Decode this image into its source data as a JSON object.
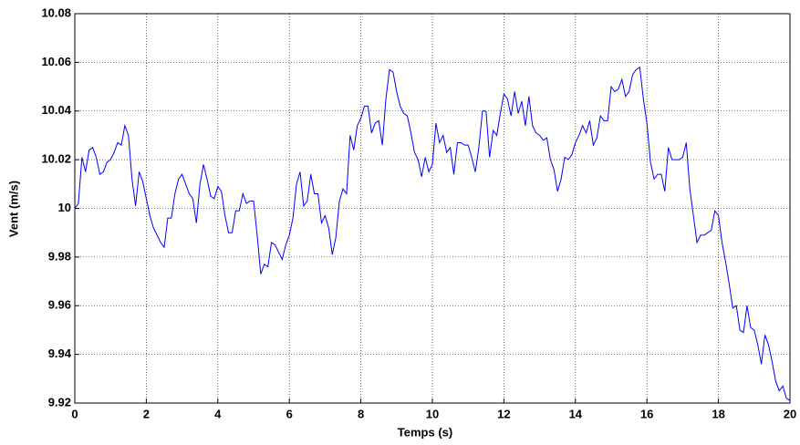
{
  "chart_data": {
    "type": "line",
    "x_label": "Temps (s)",
    "y_label": "Vent (m/s)",
    "color": "#0000ff",
    "grid": true,
    "xlim": [
      0,
      20
    ],
    "xticks": [
      0,
      2,
      4,
      6,
      8,
      10,
      12,
      14,
      16,
      18,
      20
    ],
    "ylim": [
      9.92,
      10.08
    ],
    "yticks": [
      9.92,
      9.94,
      9.96,
      9.98,
      10,
      10.02,
      10.04,
      10.06,
      10.08
    ],
    "x": [
      0,
      0.1,
      0.2,
      0.3,
      0.4,
      0.5,
      0.6,
      0.7,
      0.8,
      0.9,
      1,
      1.1,
      1.2,
      1.3,
      1.4,
      1.5,
      1.6,
      1.7,
      1.8,
      1.9,
      2,
      2.1,
      2.2,
      2.3,
      2.4,
      2.5,
      2.6,
      2.7,
      2.8,
      2.9,
      3,
      3.1,
      3.2,
      3.3,
      3.4,
      3.5,
      3.6,
      3.7,
      3.8,
      3.9,
      4,
      4.1,
      4.2,
      4.3,
      4.4,
      4.5,
      4.6,
      4.7,
      4.8,
      4.9,
      5,
      5.1,
      5.2,
      5.3,
      5.4,
      5.5,
      5.6,
      5.7,
      5.8,
      5.9,
      6,
      6.1,
      6.2,
      6.3,
      6.4,
      6.5,
      6.6,
      6.7,
      6.8,
      6.9,
      7,
      7.1,
      7.2,
      7.3,
      7.4,
      7.5,
      7.6,
      7.7,
      7.8,
      7.9,
      8,
      8.1,
      8.2,
      8.3,
      8.4,
      8.5,
      8.6,
      8.7,
      8.8,
      8.9,
      9,
      9.1,
      9.2,
      9.3,
      9.4,
      9.5,
      9.6,
      9.7,
      9.8,
      9.9,
      10,
      10.1,
      10.2,
      10.3,
      10.4,
      10.5,
      10.6,
      10.7,
      10.8,
      10.9,
      11,
      11.1,
      11.2,
      11.3,
      11.4,
      11.5,
      11.6,
      11.7,
      11.8,
      11.9,
      12,
      12.1,
      12.2,
      12.3,
      12.4,
      12.5,
      12.6,
      12.7,
      12.8,
      12.9,
      13,
      13.1,
      13.2,
      13.3,
      13.4,
      13.5,
      13.6,
      13.7,
      13.8,
      13.9,
      14,
      14.1,
      14.2,
      14.3,
      14.4,
      14.5,
      14.6,
      14.7,
      14.8,
      14.9,
      15,
      15.1,
      15.2,
      15.3,
      15.4,
      15.5,
      15.6,
      15.7,
      15.8,
      15.9,
      16,
      16.1,
      16.2,
      16.3,
      16.4,
      16.5,
      16.6,
      16.7,
      16.8,
      16.9,
      17,
      17.1,
      17.2,
      17.3,
      17.4,
      17.5,
      17.6,
      17.7,
      17.8,
      17.9,
      18,
      18.1,
      18.2,
      18.3,
      18.4,
      18.5,
      18.6,
      18.7,
      18.8,
      18.9,
      19,
      19.1,
      19.2,
      19.3,
      19.4,
      19.5,
      19.6,
      19.7,
      19.8,
      19.9,
      20
    ],
    "values": [
      10.0,
      10.002,
      10.021,
      10.015,
      10.024,
      10.025,
      10.021,
      10.014,
      10.015,
      10.019,
      10.02,
      10.023,
      10.027,
      10.026,
      10.034,
      10.03,
      10.012,
      10.001,
      10.015,
      10.011,
      10.004,
      9.997,
      9.992,
      9.989,
      9.986,
      9.984,
      9.996,
      9.996,
      10.006,
      10.012,
      10.014,
      10.01,
      10.006,
      10.004,
      9.994,
      10.01,
      10.018,
      10.012,
      10.005,
      10.004,
      10.009,
      10.007,
      9.997,
      9.99,
      9.99,
      9.999,
      9.999,
      10.006,
      10.002,
      10.003,
      10.003,
      9.989,
      9.973,
      9.977,
      9.976,
      9.986,
      9.985,
      9.982,
      9.979,
      9.985,
      9.989,
      9.996,
      10.01,
      10.015,
      10.001,
      10.003,
      10.014,
      10.006,
      10.006,
      9.994,
      9.997,
      9.992,
      9.981,
      9.988,
      10.003,
      10.008,
      10.006,
      10.03,
      10.024,
      10.034,
      10.037,
      10.042,
      10.042,
      10.031,
      10.035,
      10.036,
      10.026,
      10.045,
      10.057,
      10.056,
      10.048,
      10.042,
      10.039,
      10.038,
      10.031,
      10.023,
      10.02,
      10.013,
      10.021,
      10.015,
      10.018,
      10.035,
      10.027,
      10.03,
      10.023,
      10.025,
      10.014,
      10.027,
      10.027,
      10.026,
      10.026,
      10.021,
      10.015,
      10.025,
      10.04,
      10.04,
      10.021,
      10.032,
      10.03,
      10.039,
      10.047,
      10.045,
      10.038,
      10.048,
      10.039,
      10.044,
      10.034,
      10.046,
      10.034,
      10.031,
      10.03,
      10.028,
      10.029,
      10.02,
      10.016,
      10.007,
      10.012,
      10.021,
      10.02,
      10.022,
      10.027,
      10.03,
      10.034,
      10.031,
      10.036,
      10.026,
      10.029,
      10.038,
      10.036,
      10.036,
      10.05,
      10.048,
      10.049,
      10.053,
      10.046,
      10.048,
      10.055,
      10.057,
      10.058,
      10.045,
      10.035,
      10.019,
      10.012,
      10.014,
      10.014,
      10.007,
      10.025,
      10.02,
      10.02,
      10.02,
      10.021,
      10.027,
      10.008,
      9.997,
      9.986,
      9.989,
      9.989,
      9.99,
      9.991,
      9.999,
      9.997,
      9.986,
      9.978,
      9.969,
      9.959,
      9.96,
      9.95,
      9.949,
      9.96,
      9.951,
      9.95,
      9.944,
      9.936,
      9.948,
      9.944,
      9.937,
      9.929,
      9.925,
      9.927,
      9.922,
      9.921
    ]
  }
}
